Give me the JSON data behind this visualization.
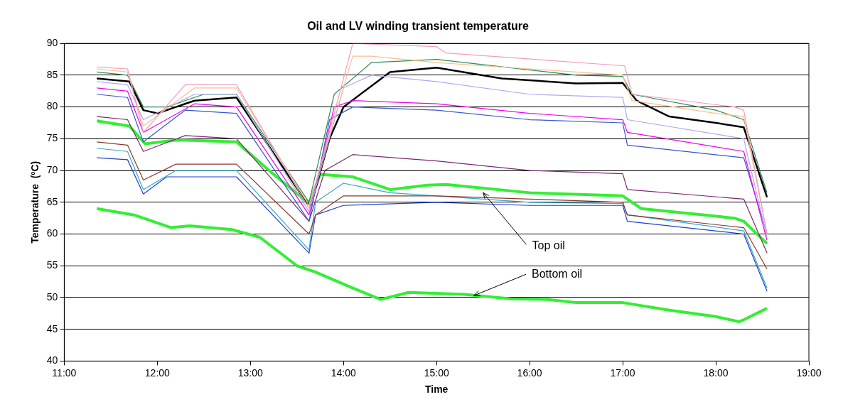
{
  "chart_data": {
    "type": "line",
    "title": "Oil and LV winding transient temperature",
    "xlabel": "Time",
    "ylabel": "Temperature  (ºC)",
    "xlim": [
      11,
      19
    ],
    "xticks": [
      {
        "value": 11,
        "label": "11:00"
      },
      {
        "value": 12,
        "label": "12:00"
      },
      {
        "value": 13,
        "label": "13:00"
      },
      {
        "value": 14,
        "label": "14:00"
      },
      {
        "value": 15,
        "label": "15:00"
      },
      {
        "value": 16,
        "label": "16:00"
      },
      {
        "value": 17,
        "label": "17:00"
      },
      {
        "value": 18,
        "label": "18:00"
      },
      {
        "value": 19,
        "label": "19:00"
      }
    ],
    "ylim": [
      40,
      90
    ],
    "yticks": [
      40,
      45,
      50,
      55,
      60,
      65,
      70,
      75,
      80,
      85,
      90
    ],
    "grid": "y",
    "legend": false,
    "marker": "none",
    "line_style": "solid",
    "annotations": [
      {
        "text": "Top oil",
        "x": 15.5,
        "y": 66.5
      },
      {
        "text": "Bottom oil",
        "x": 15.4,
        "y": 50.3
      }
    ],
    "series": [
      {
        "color": "#f49ac1",
        "x": [
          11.35,
          11.68,
          11.85,
          12.3,
          12.85,
          13.63,
          14.1,
          15.0,
          15.1,
          17.0,
          17.02,
          17.1,
          18.2,
          18.3,
          18.55
        ],
        "values": [
          86.3,
          86,
          76,
          83.5,
          83.5,
          64,
          90,
          89.5,
          88.5,
          86.5,
          86.5,
          82,
          80,
          79.5,
          60
        ]
      },
      {
        "color": "#fbc08a",
        "x": [
          11.35,
          11.68,
          11.85,
          12.4,
          12.85,
          13.63,
          14.1,
          14.3,
          15.0,
          17.0,
          17.1,
          18.0,
          18.3,
          18.55
        ],
        "values": [
          86,
          85.5,
          77,
          83,
          83,
          64.5,
          88,
          88,
          87,
          85,
          81,
          79,
          78.5,
          60
        ]
      },
      {
        "color": "#b0a8f0",
        "x": [
          11.35,
          11.68,
          11.85,
          12.4,
          12.85,
          13.63,
          14.0,
          14.3,
          15.0,
          16.0,
          17.0,
          17.05,
          18.3,
          18.55
        ],
        "values": [
          84,
          83.5,
          78,
          82,
          82,
          63.5,
          83,
          85,
          84,
          82,
          81.5,
          78,
          75,
          59.5
        ]
      },
      {
        "color": "#ee00ee",
        "x": [
          11.35,
          11.68,
          11.85,
          12.4,
          12.85,
          13.63,
          13.9,
          14.1,
          15.0,
          16.0,
          17.0,
          17.05,
          18.3,
          18.55
        ],
        "values": [
          83,
          82.5,
          76,
          80.5,
          80,
          63,
          80,
          81,
          80.5,
          79,
          78,
          76,
          73,
          59
        ]
      },
      {
        "color": "#3355cc",
        "x": [
          11.35,
          11.68,
          11.85,
          12.3,
          12.85,
          13.63,
          13.85,
          14.1,
          15.0,
          16.0,
          17.0,
          17.05,
          18.3,
          18.55
        ],
        "values": [
          82,
          81.5,
          74.5,
          79.5,
          79,
          62,
          78,
          80,
          79.5,
          78,
          77.5,
          74,
          72,
          60
        ]
      },
      {
        "color": "#2e8b57",
        "x": [
          11.35,
          11.68,
          11.85,
          12.1,
          12.5,
          12.85,
          13.63,
          13.9,
          14.3,
          15.0,
          16.5,
          17.0,
          17.1,
          18.0,
          18.3,
          18.55
        ],
        "values": [
          85.5,
          85,
          80,
          80,
          82,
          82,
          65,
          82,
          87,
          87.5,
          85,
          84.8,
          82,
          79.5,
          78,
          66.5
        ]
      },
      {
        "color": "#000000",
        "x": [
          11.35,
          11.7,
          11.85,
          12.0,
          12.4,
          12.85,
          13.6,
          13.65,
          13.85,
          14.0,
          14.5,
          15.0,
          15.7,
          16.5,
          17.0,
          17.15,
          17.5,
          18.0,
          18.3,
          18.55
        ],
        "values": [
          84.5,
          84,
          79.5,
          79,
          81,
          81.5,
          65,
          64.5,
          75,
          80,
          85.5,
          86.2,
          84.5,
          83.7,
          83.8,
          81,
          78.5,
          77.5,
          76.8,
          65.8
        ]
      },
      {
        "color": "#7b2870",
        "x": [
          11.35,
          11.68,
          11.85,
          12.3,
          12.85,
          13.63,
          13.8,
          14.1,
          15.0,
          16.0,
          17.0,
          17.05,
          18.3,
          18.55
        ],
        "values": [
          78.5,
          78,
          73,
          75.5,
          75,
          62,
          70,
          72.5,
          71.5,
          70,
          69.5,
          67,
          65.5,
          57
        ]
      },
      {
        "color": "#8b3a2a",
        "x": [
          11.35,
          11.68,
          11.85,
          12.2,
          12.85,
          13.63,
          13.7,
          14.0,
          15.0,
          16.0,
          17.0,
          17.05,
          18.3,
          18.55
        ],
        "values": [
          74.5,
          74,
          68.5,
          71,
          71,
          60,
          63,
          66,
          66,
          65.5,
          65,
          63,
          61,
          54.5
        ]
      },
      {
        "color": "#33aacc",
        "x": [
          11.35,
          11.68,
          11.85,
          12.2,
          12.85,
          13.63,
          13.7,
          14.0,
          14.5,
          15.0,
          16.0,
          17.0,
          17.05,
          18.3,
          18.55
        ],
        "values": [
          73.5,
          73,
          67,
          70,
          70,
          57.5,
          65,
          68,
          66.5,
          66,
          65,
          64.8,
          63,
          60.5,
          51.5
        ]
      },
      {
        "color": "#1f3fd0",
        "x": [
          11.35,
          11.68,
          11.85,
          12.1,
          12.85,
          13.63,
          13.7,
          14.0,
          15.0,
          16.0,
          17.0,
          17.05,
          18.3,
          18.55
        ],
        "values": [
          72,
          71.7,
          66.3,
          69,
          69,
          57,
          63,
          64.5,
          65,
          64.5,
          64.5,
          62,
          60,
          51
        ]
      },
      {
        "color": "#33ee33",
        "x": [
          11.35,
          11.7,
          11.87,
          12.2,
          12.85,
          13.2,
          13.63,
          13.75,
          14.1,
          14.5,
          14.9,
          15.1,
          16.0,
          17.0,
          17.2,
          18.2,
          18.3,
          18.55
        ],
        "values": [
          77.8,
          77,
          74.2,
          74.8,
          74.5,
          70,
          64.8,
          69.4,
          69,
          67,
          67.7,
          67.8,
          66.5,
          66,
          64,
          62.5,
          62,
          58.5
        ]
      },
      {
        "color": "#33ee33",
        "x": [
          11.35,
          11.75,
          12.15,
          12.35,
          12.8,
          13.1,
          13.5,
          13.7,
          14.1,
          14.4,
          14.7,
          15.3,
          15.8,
          16.2,
          16.5,
          17.0,
          17.5,
          18.0,
          18.25,
          18.3,
          18.55
        ],
        "values": [
          64,
          63,
          61,
          61.3,
          60.7,
          59.5,
          55,
          54,
          51.5,
          49.7,
          50.8,
          50.5,
          49.8,
          49.7,
          49.2,
          49.2,
          48,
          47,
          46.2,
          46.5,
          48.3
        ]
      }
    ]
  }
}
